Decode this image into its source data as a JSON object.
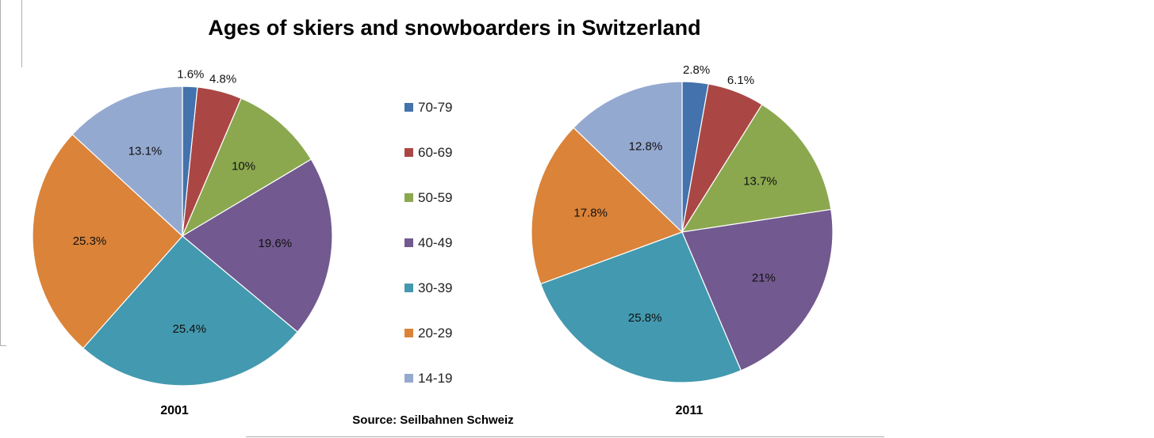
{
  "chart_data": {
    "type": "pie",
    "title": "Ages of skiers and snowboarders in Switzerland",
    "source": "Source: Seilbahnen Schweiz",
    "categories": [
      "70-79",
      "60-69",
      "50-59",
      "40-49",
      "30-39",
      "20-29",
      "14-19"
    ],
    "colors": [
      "#4372AC",
      "#AA4744",
      "#8BA84F",
      "#72598F",
      "#4399AF",
      "#DA8339",
      "#94A9D0"
    ],
    "series": [
      {
        "name": "2001",
        "values": [
          1.6,
          4.8,
          10,
          19.6,
          25.4,
          25.3,
          13.1
        ],
        "labels": [
          "1.6%",
          "4.8%",
          "10%",
          "19.6%",
          "25.4%",
          "25.3%",
          "13.1%"
        ]
      },
      {
        "name": "2011",
        "values": [
          2.8,
          6.1,
          13.7,
          21,
          25.8,
          17.8,
          12.8
        ],
        "labels": [
          "2.8%",
          "6.1%",
          "13.7%",
          "21%",
          "25.8%",
          "17.8%",
          "12.8%"
        ]
      }
    ],
    "legend": "center"
  }
}
